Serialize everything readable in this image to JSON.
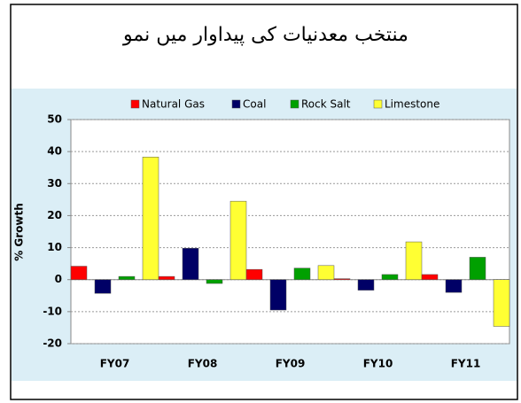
{
  "chart_data": {
    "type": "bar",
    "title": "منتخب معدنیات کی پیداوار میں نمو",
    "ylabel": "% Growth",
    "categories": [
      "FY07",
      "FY08",
      "FY09",
      "FY10",
      "FY11"
    ],
    "series": [
      {
        "name": "Natural Gas",
        "color": "#ff0000",
        "values": [
          4.2,
          1.0,
          3.2,
          0.3,
          1.6
        ]
      },
      {
        "name": "Coal",
        "color": "#000066",
        "values": [
          -4.3,
          9.8,
          -9.5,
          -3.3,
          -4.0
        ]
      },
      {
        "name": "Rock Salt",
        "color": "#00a000",
        "values": [
          1.0,
          -1.2,
          3.6,
          1.6,
          7.0
        ]
      },
      {
        "name": "Limestone",
        "color": "#ffff33",
        "values": [
          38.3,
          24.5,
          4.4,
          11.8,
          -14.6
        ]
      }
    ],
    "ylim": [
      -20,
      50
    ],
    "yticks": [
      -20,
      -10,
      0,
      10,
      20,
      30,
      40,
      50
    ],
    "grid": true,
    "legend": "top"
  }
}
